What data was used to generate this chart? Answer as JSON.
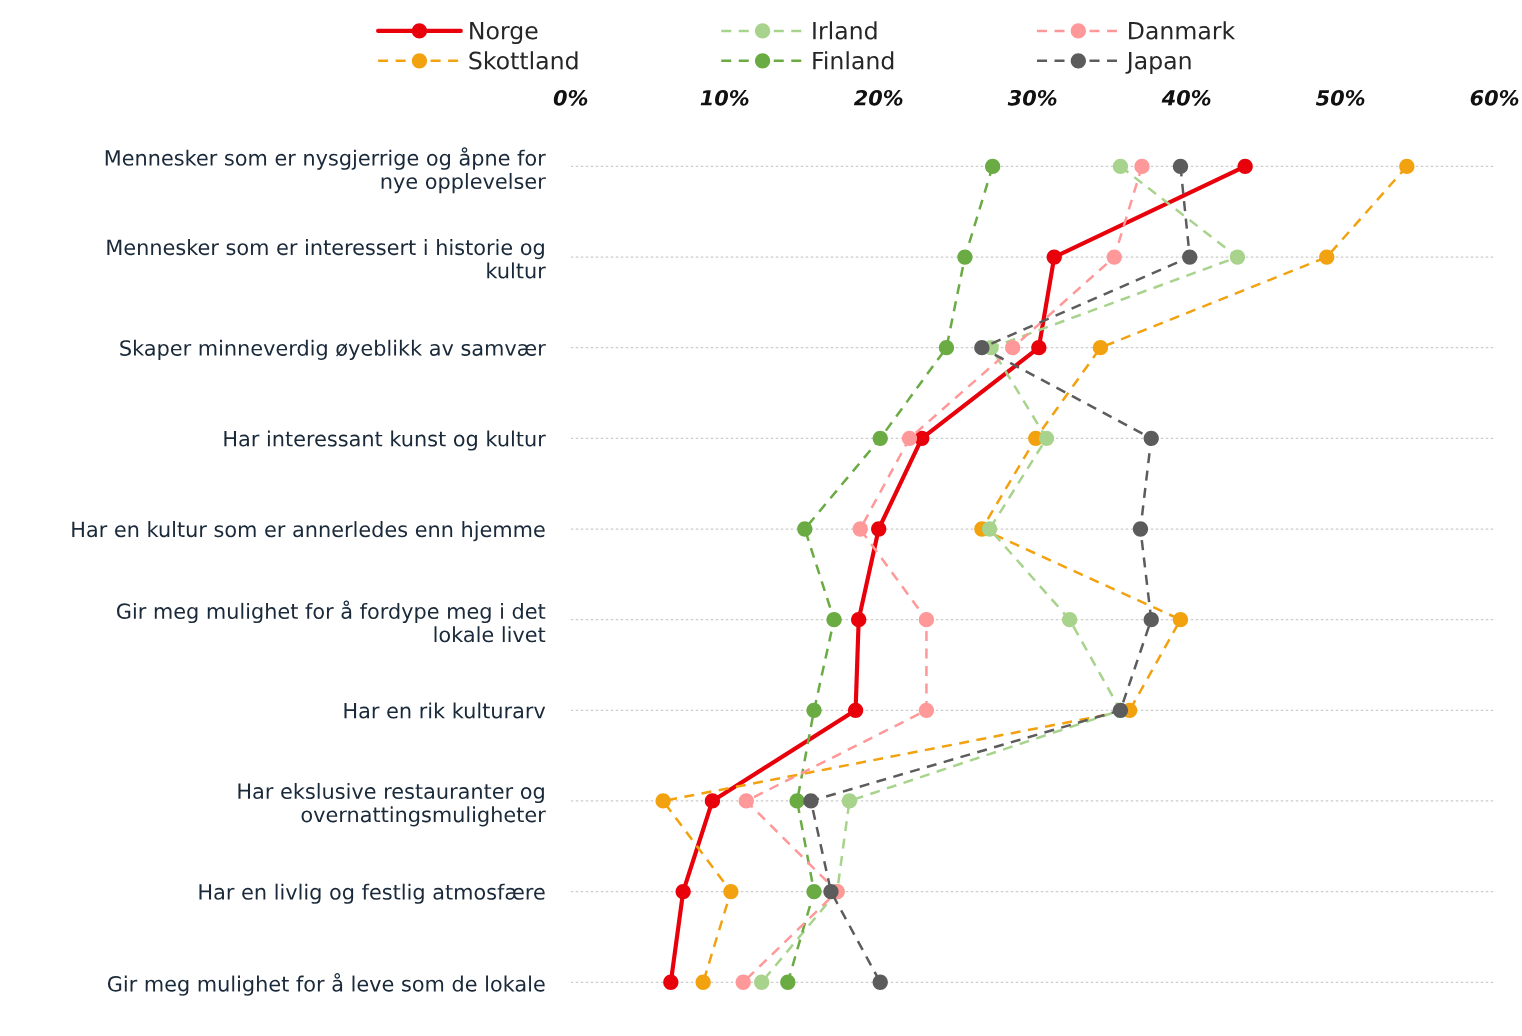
{
  "chart_data": {
    "type": "line",
    "orientation": "horizontal",
    "categories": [
      "Mennesker som er nysgjerrige og åpne for\nnye opplevelser",
      "Mennesker som er interessert i historie og\nkultur",
      "Skaper minneverdig øyeblikk av samvær",
      "Har interessant kunst og kultur",
      "Har en kultur som er annerledes enn hjemme",
      "Gir meg mulighet for å fordype meg i det\nlokale livet",
      "Har en rik kulturarv",
      "Har ekslusive restauranter og\novernattingsmuligheter",
      "Har en livlig og festlig atmosfære",
      "Gir meg mulighet for å leve som de lokale"
    ],
    "series": [
      {
        "name": "Norge",
        "color": "#e8000b",
        "line_style": "solid",
        "values": [
          43.8,
          31.4,
          30.4,
          22.8,
          20.0,
          18.7,
          18.5,
          9.2,
          7.3,
          6.5
        ]
      },
      {
        "name": "Skottland",
        "color": "#f2a10f",
        "line_style": "dashed",
        "values": [
          54.3,
          49.1,
          34.4,
          30.2,
          26.7,
          39.6,
          36.3,
          6.0,
          10.4,
          8.6
        ]
      },
      {
        "name": "Irland",
        "color": "#a8d38d",
        "line_style": "dashed",
        "values": [
          35.7,
          43.3,
          27.3,
          30.9,
          27.2,
          32.4,
          35.7,
          18.1,
          17.3,
          12.4
        ]
      },
      {
        "name": "Finland",
        "color": "#6aab44",
        "line_style": "dashed",
        "values": [
          27.4,
          25.6,
          24.4,
          20.1,
          15.2,
          17.1,
          15.8,
          14.7,
          15.8,
          14.1
        ]
      },
      {
        "name": "Danmark",
        "color": "#ff9898",
        "line_style": "dashed",
        "values": [
          37.1,
          35.3,
          28.7,
          22.0,
          18.8,
          23.1,
          23.1,
          11.4,
          17.3,
          11.2
        ]
      },
      {
        "name": "Japan",
        "color": "#5c5c5c",
        "line_style": "dashed",
        "values": [
          39.6,
          40.2,
          26.7,
          37.7,
          37.0,
          37.7,
          35.7,
          15.6,
          16.9,
          20.1
        ]
      }
    ],
    "xlim": [
      0,
      60
    ],
    "xticks": [
      {
        "value": 0,
        "label": "0%"
      },
      {
        "value": 10,
        "label": "10%"
      },
      {
        "value": 20,
        "label": "20%"
      },
      {
        "value": 30,
        "label": "30%"
      },
      {
        "value": 40,
        "label": "40%"
      },
      {
        "value": 50,
        "label": "50%"
      },
      {
        "value": 60,
        "label": "60%"
      }
    ],
    "grid": "y",
    "legend": "top",
    "marker": "circle"
  }
}
